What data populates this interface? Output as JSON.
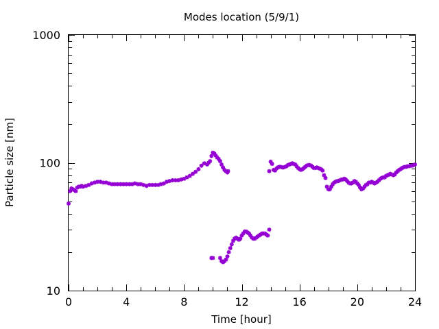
{
  "chart_data": {
    "type": "scatter",
    "title": "Modes location (5/9/1)",
    "xlabel": "Time [hour]",
    "ylabel": "Particle size [nm]",
    "xlim": [
      0,
      24
    ],
    "ylim": [
      10,
      1000
    ],
    "yscale": "log",
    "xticks": [
      0,
      4,
      8,
      12,
      16,
      20,
      24
    ],
    "xtick_labels": [
      "0",
      "4",
      "8",
      "12",
      "16",
      "20",
      "24"
    ],
    "yticks": [
      10,
      100,
      1000
    ],
    "ytick_labels": [
      "10",
      "100",
      "1000"
    ],
    "grid": false,
    "legend": "none",
    "marker_color": "#9400d3",
    "series": [
      {
        "points": [
          [
            0.0,
            48
          ],
          [
            0.1,
            60
          ],
          [
            0.2,
            63
          ],
          [
            0.3,
            62
          ],
          [
            0.4,
            61
          ],
          [
            0.5,
            60
          ],
          [
            0.6,
            64
          ],
          [
            0.7,
            65
          ],
          [
            0.8,
            65
          ],
          [
            0.9,
            66
          ],
          [
            1.0,
            65
          ],
          [
            1.2,
            66
          ],
          [
            1.4,
            67
          ],
          [
            1.6,
            69
          ],
          [
            1.8,
            70
          ],
          [
            2.0,
            71
          ],
          [
            2.2,
            71
          ],
          [
            2.4,
            70
          ],
          [
            2.6,
            70
          ],
          [
            2.8,
            69
          ],
          [
            3.0,
            68
          ],
          [
            3.2,
            68
          ],
          [
            3.4,
            68
          ],
          [
            3.6,
            68
          ],
          [
            3.8,
            68
          ],
          [
            4.0,
            68
          ],
          [
            4.2,
            68
          ],
          [
            4.4,
            68
          ],
          [
            4.6,
            69
          ],
          [
            4.8,
            68
          ],
          [
            5.0,
            68
          ],
          [
            5.2,
            67
          ],
          [
            5.4,
            66
          ],
          [
            5.6,
            67
          ],
          [
            5.8,
            67
          ],
          [
            6.0,
            67
          ],
          [
            6.2,
            67
          ],
          [
            6.4,
            68
          ],
          [
            6.6,
            69
          ],
          [
            6.8,
            71
          ],
          [
            7.0,
            72
          ],
          [
            7.2,
            73
          ],
          [
            7.4,
            73
          ],
          [
            7.6,
            73
          ],
          [
            7.8,
            74
          ],
          [
            8.0,
            75
          ],
          [
            8.2,
            77
          ],
          [
            8.4,
            79
          ],
          [
            8.6,
            82
          ],
          [
            8.8,
            85
          ],
          [
            9.0,
            89
          ],
          [
            9.2,
            95
          ],
          [
            9.4,
            99
          ],
          [
            9.6,
            97
          ],
          [
            9.7,
            100
          ],
          [
            9.8,
            103
          ],
          [
            9.9,
            113
          ],
          [
            10.0,
            120
          ],
          [
            10.1,
            118
          ],
          [
            10.2,
            114
          ],
          [
            10.3,
            110
          ],
          [
            10.4,
            107
          ],
          [
            10.5,
            103
          ],
          [
            10.6,
            97
          ],
          [
            10.7,
            92
          ],
          [
            10.8,
            88
          ],
          [
            10.9,
            86
          ],
          [
            11.0,
            84
          ],
          [
            11.05,
            86
          ],
          [
            9.9,
            18
          ],
          [
            10.0,
            18
          ],
          [
            10.5,
            18
          ],
          [
            10.6,
            17
          ],
          [
            10.7,
            16.7
          ],
          [
            10.8,
            17
          ],
          [
            10.9,
            17.5
          ],
          [
            11.0,
            18.5
          ],
          [
            11.1,
            20
          ],
          [
            11.2,
            21.5
          ],
          [
            11.3,
            23
          ],
          [
            11.4,
            24.5
          ],
          [
            11.5,
            25.5
          ],
          [
            11.6,
            26
          ],
          [
            11.7,
            25.5
          ],
          [
            11.8,
            25
          ],
          [
            11.9,
            25.5
          ],
          [
            12.0,
            27
          ],
          [
            12.1,
            28
          ],
          [
            12.2,
            29
          ],
          [
            12.3,
            29
          ],
          [
            12.4,
            28.5
          ],
          [
            12.5,
            28
          ],
          [
            12.6,
            27
          ],
          [
            12.7,
            26
          ],
          [
            12.8,
            25.5
          ],
          [
            12.9,
            25.5
          ],
          [
            13.0,
            26
          ],
          [
            13.1,
            26.5
          ],
          [
            13.2,
            27
          ],
          [
            13.3,
            27.5
          ],
          [
            13.4,
            28
          ],
          [
            13.5,
            28
          ],
          [
            13.6,
            28
          ],
          [
            13.7,
            27.5
          ],
          [
            13.8,
            27
          ],
          [
            13.9,
            30
          ],
          [
            13.9,
            86
          ],
          [
            14.0,
            102
          ],
          [
            14.1,
            98
          ],
          [
            14.2,
            88
          ],
          [
            14.3,
            87
          ],
          [
            14.4,
            90
          ],
          [
            14.5,
            92
          ],
          [
            14.6,
            93
          ],
          [
            14.7,
            93
          ],
          [
            14.8,
            92
          ],
          [
            14.9,
            92
          ],
          [
            15.0,
            93
          ],
          [
            15.1,
            94
          ],
          [
            15.2,
            96
          ],
          [
            15.3,
            97
          ],
          [
            15.4,
            98
          ],
          [
            15.5,
            99
          ],
          [
            15.6,
            98
          ],
          [
            15.7,
            97
          ],
          [
            15.8,
            94
          ],
          [
            15.9,
            91
          ],
          [
            16.0,
            89
          ],
          [
            16.1,
            88
          ],
          [
            16.2,
            89
          ],
          [
            16.3,
            91
          ],
          [
            16.4,
            93
          ],
          [
            16.5,
            95
          ],
          [
            16.6,
            96
          ],
          [
            16.7,
            96
          ],
          [
            16.8,
            95
          ],
          [
            16.9,
            93
          ],
          [
            17.0,
            91
          ],
          [
            17.1,
            91
          ],
          [
            17.2,
            92
          ],
          [
            17.3,
            91
          ],
          [
            17.4,
            90
          ],
          [
            17.5,
            89
          ],
          [
            17.6,
            87
          ],
          [
            17.7,
            80
          ],
          [
            17.8,
            76
          ],
          [
            17.9,
            65
          ],
          [
            18.0,
            62
          ],
          [
            18.1,
            62
          ],
          [
            18.2,
            65
          ],
          [
            18.3,
            68
          ],
          [
            18.4,
            70
          ],
          [
            18.5,
            71
          ],
          [
            18.6,
            72
          ],
          [
            18.7,
            72
          ],
          [
            18.8,
            73
          ],
          [
            18.9,
            74
          ],
          [
            19.0,
            74
          ],
          [
            19.1,
            75
          ],
          [
            19.2,
            74
          ],
          [
            19.3,
            72
          ],
          [
            19.4,
            70
          ],
          [
            19.5,
            69
          ],
          [
            19.6,
            69
          ],
          [
            19.7,
            70
          ],
          [
            19.8,
            72
          ],
          [
            19.9,
            71
          ],
          [
            20.0,
            69
          ],
          [
            20.1,
            67
          ],
          [
            20.2,
            64
          ],
          [
            20.3,
            62
          ],
          [
            20.4,
            63
          ],
          [
            20.5,
            65
          ],
          [
            20.6,
            67
          ],
          [
            20.7,
            68
          ],
          [
            20.8,
            70
          ],
          [
            20.9,
            70
          ],
          [
            21.0,
            71
          ],
          [
            21.1,
            70
          ],
          [
            21.2,
            69
          ],
          [
            21.3,
            70
          ],
          [
            21.4,
            71
          ],
          [
            21.5,
            73
          ],
          [
            21.6,
            75
          ],
          [
            21.7,
            76
          ],
          [
            21.8,
            77
          ],
          [
            21.9,
            77
          ],
          [
            22.0,
            79
          ],
          [
            22.1,
            80
          ],
          [
            22.2,
            81
          ],
          [
            22.3,
            82
          ],
          [
            22.4,
            81
          ],
          [
            22.5,
            80
          ],
          [
            22.6,
            81
          ],
          [
            22.7,
            84
          ],
          [
            22.8,
            86
          ],
          [
            22.9,
            88
          ],
          [
            23.0,
            89
          ],
          [
            23.1,
            91
          ],
          [
            23.2,
            92
          ],
          [
            23.3,
            93
          ],
          [
            23.4,
            93
          ],
          [
            23.5,
            94
          ],
          [
            23.6,
            94
          ],
          [
            23.7,
            95
          ],
          [
            23.8,
            95
          ],
          [
            23.9,
            96
          ],
          [
            24.0,
            97
          ]
        ]
      }
    ]
  }
}
